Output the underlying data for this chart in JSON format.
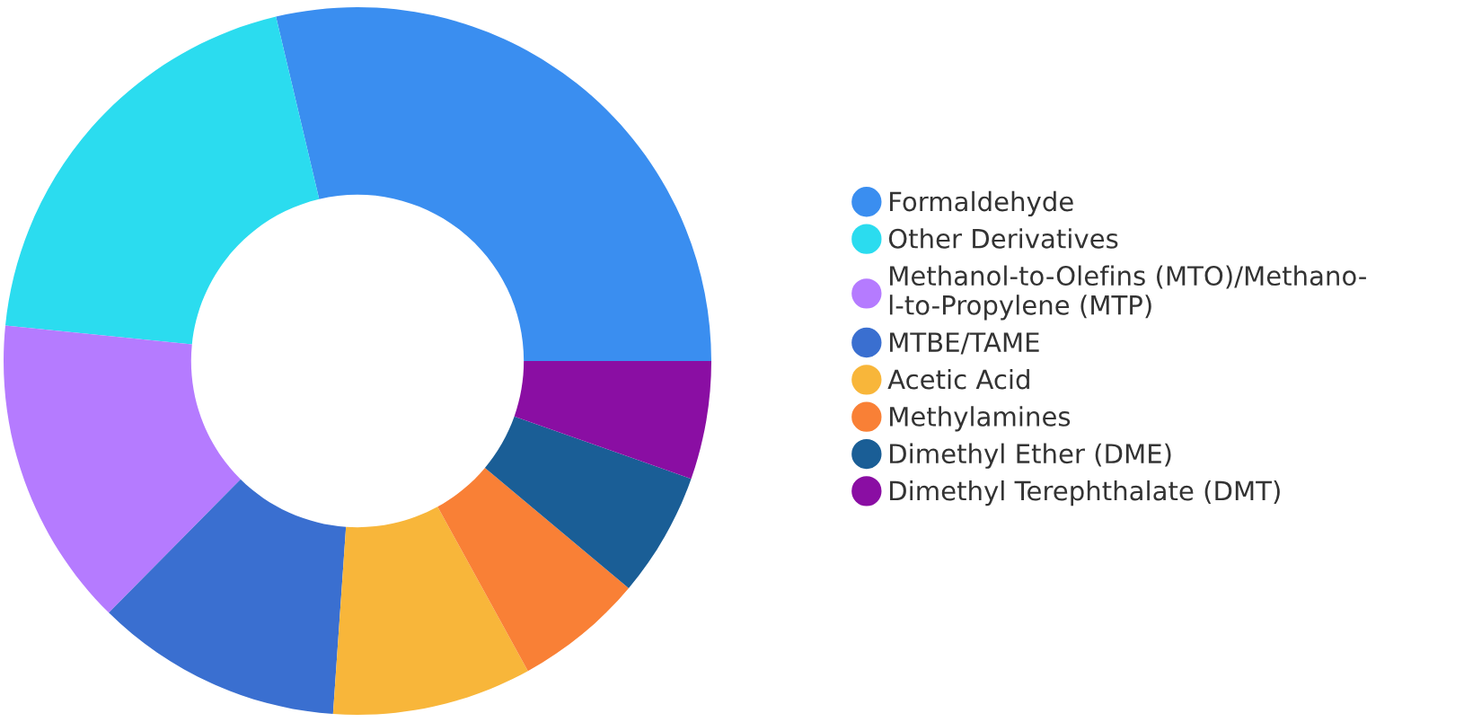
{
  "chart_data": {
    "type": "donut",
    "categories": [
      "Formaldehyde",
      "Other Derivatives",
      "Methanol-to-Olefins (MTO)/Methano-\nl-to-Propylene (MTP)",
      "MTBE/TAME",
      "Acetic Acid",
      "Methylamines",
      "Dimethyl Ether (DME)",
      "Dimethyl Terephthalate (DMT)"
    ],
    "values": [
      28.7,
      19.7,
      14.2,
      11.3,
      9.1,
      5.9,
      5.7,
      5.4
    ],
    "colors": [
      "#3a8ef0",
      "#2bdcef",
      "#b57bff",
      "#3a6fd0",
      "#f8b63a",
      "#f98036",
      "#1a5e96",
      "#8a0ea3"
    ],
    "legend": "right"
  }
}
